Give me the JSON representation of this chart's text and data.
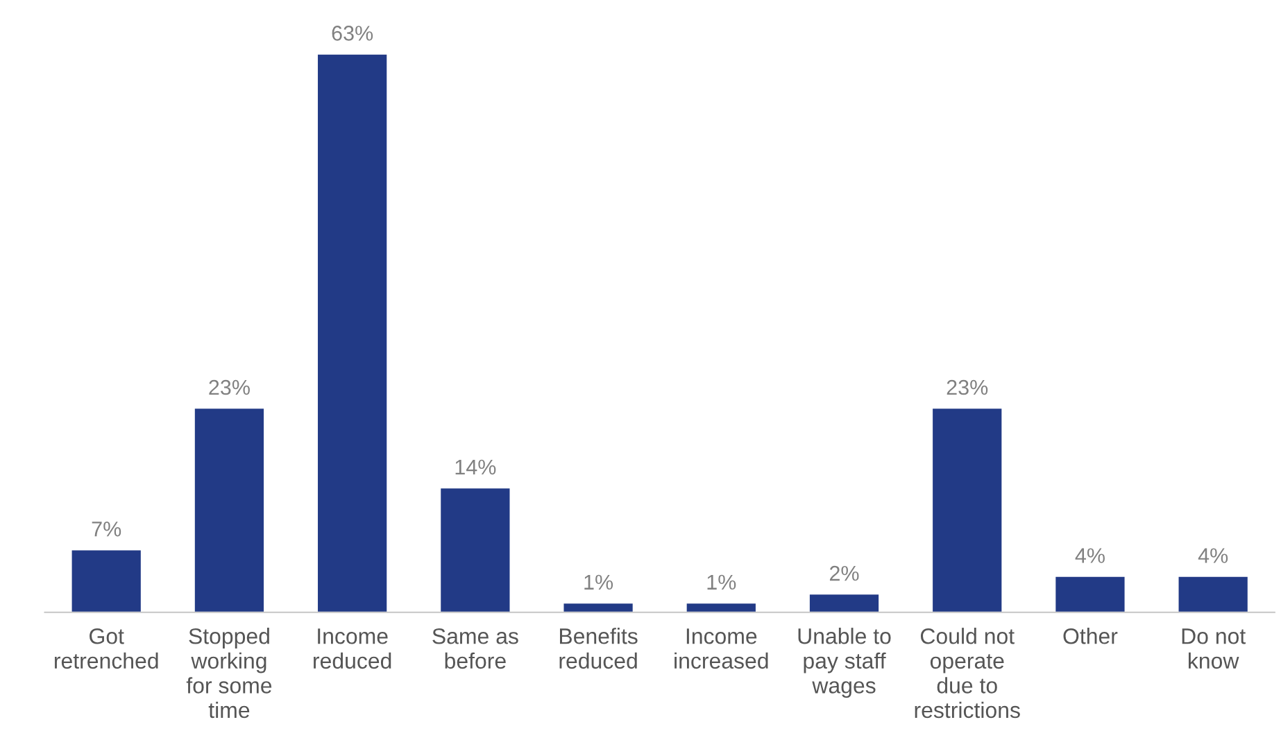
{
  "chart_data": {
    "type": "bar",
    "categories": [
      "Got\nretrenched",
      "Stopped\nworking\nfor some\ntime",
      "Income\nreduced",
      "Same as\nbefore",
      "Benefits\nreduced",
      "Income\nincreased",
      "Unable to\npay staff\nwages",
      "Could not\noperate\ndue to\nrestrictions",
      "Other",
      "Do not\nknow"
    ],
    "values": [
      7,
      23,
      63,
      14,
      1,
      1,
      2,
      23,
      4,
      4
    ],
    "value_labels": [
      "7%",
      "23%",
      "63%",
      "14%",
      "1%",
      "1%",
      "2%",
      "23%",
      "4%",
      "4%"
    ],
    "color": "#223a86",
    "grid": false,
    "legend": false
  }
}
